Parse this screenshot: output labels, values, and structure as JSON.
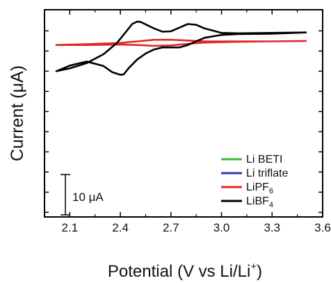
{
  "chart_data": {
    "type": "line",
    "title": "",
    "xlabel": "Potential (V vs Li/Li",
    "xlabel_sup": "+",
    "xlabel_close": ")",
    "ylabel": "Current (μA)",
    "xlim": [
      1.95,
      3.6
    ],
    "xticks": [
      2.1,
      2.4,
      2.7,
      3.0,
      3.3,
      3.6
    ],
    "xtick_labels": [
      "2.1",
      "2.4",
      "2.7",
      "3.0",
      "3.3",
      "3.6"
    ],
    "yticks_labeled": false,
    "grid": false,
    "scale_bar": {
      "label": "10 μA",
      "value_uA": 10
    },
    "legend": {
      "placement": "bottom-right",
      "entries": [
        {
          "name": "Li BETI",
          "name_sub": "",
          "color": "#3cb83c"
        },
        {
          "name": "Li triflate",
          "name_sub": "",
          "color": "#2838a8"
        },
        {
          "name": "LiPF",
          "name_sub": "6",
          "color": "#e02828"
        },
        {
          "name": "LiBF",
          "name_sub": "4",
          "color": "#000000"
        }
      ]
    },
    "series": [
      {
        "name": "Li BETI",
        "color": "#3cb83c",
        "x": [
          2.02,
          2.2,
          2.4,
          2.6,
          2.8,
          3.0,
          3.2,
          3.5,
          3.2,
          3.0,
          2.8,
          2.6,
          2.4,
          2.2,
          2.02
        ],
        "y": [
          0.0,
          0.05,
          0.1,
          0.15,
          0.15,
          0.2,
          0.2,
          0.25,
          0.2,
          0.15,
          0.1,
          0.1,
          0.05,
          0.0,
          0.0
        ],
        "offset": 60
      },
      {
        "name": "Li triflate",
        "color": "#2838a8",
        "x": [
          2.02,
          2.3,
          2.6,
          2.9,
          3.2,
          3.5,
          3.2,
          2.9,
          2.6,
          2.3,
          2.02
        ],
        "y": [
          0.0,
          0.0,
          0.1,
          0.1,
          0.1,
          0.15,
          0.1,
          0.05,
          0.05,
          0.0,
          0.0
        ],
        "offset": 44
      },
      {
        "name": "LiPF6",
        "color": "#e02828",
        "x": [
          2.02,
          2.2,
          2.4,
          2.5,
          2.6,
          2.7,
          2.8,
          2.9,
          3.1,
          3.3,
          3.5,
          3.3,
          3.1,
          2.9,
          2.8,
          2.7,
          2.6,
          2.5,
          2.4,
          2.2,
          2.02
        ],
        "y": [
          0.0,
          0.2,
          0.5,
          0.9,
          1.3,
          1.3,
          1.1,
          0.9,
          0.9,
          0.9,
          1.0,
          0.9,
          0.8,
          0.6,
          0.3,
          -0.1,
          -0.2,
          0.0,
          0.1,
          0.0,
          0.0
        ],
        "offset": 28.5
      },
      {
        "name": "LiBF4",
        "color": "#000000",
        "x": [
          2.02,
          2.1,
          2.2,
          2.3,
          2.38,
          2.43,
          2.47,
          2.5,
          2.52,
          2.55,
          2.6,
          2.65,
          2.7,
          2.75,
          2.8,
          2.85,
          2.9,
          3.0,
          3.1,
          3.3,
          3.5,
          3.3,
          3.1,
          3.0,
          2.9,
          2.85,
          2.8,
          2.75,
          2.7,
          2.65,
          2.6,
          2.55,
          2.5,
          2.45,
          2.42,
          2.4,
          2.35,
          2.3,
          2.2,
          2.1,
          2.02
        ],
        "y": [
          0.0,
          0.7,
          2.0,
          4.2,
          7.0,
          9.6,
          11.7,
          12.3,
          12.2,
          11.6,
          10.6,
          9.8,
          9.9,
          10.8,
          11.7,
          11.5,
          10.6,
          9.5,
          9.4,
          9.5,
          9.6,
          9.3,
          9.2,
          9.0,
          8.3,
          7.4,
          6.5,
          5.9,
          5.9,
          5.9,
          5.4,
          4.4,
          2.9,
          0.8,
          -0.8,
          -0.9,
          -0.2,
          1.3,
          2.4,
          1.4,
          0.0
        ],
        "offset": 22.0
      }
    ]
  }
}
